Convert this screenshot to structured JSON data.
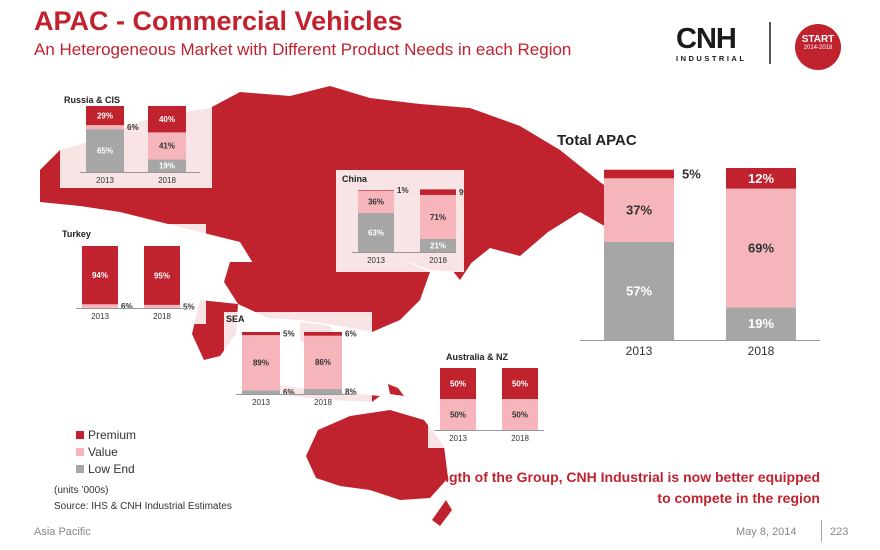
{
  "header": {
    "title": "APAC - Commercial Vehicles",
    "subtitle": "An Heterogeneous Market with Different Product Needs in each Region"
  },
  "logo": {
    "word": "CNH",
    "sub": "INDUSTRIAL"
  },
  "badge": {
    "line1": "START",
    "line2": "2014-2018"
  },
  "colors": {
    "premium": "#c0222e",
    "value": "#f5b5bb",
    "low_end": "#a6a6a6",
    "map": "#c0222e"
  },
  "chart_data": [
    {
      "type": "bar",
      "stacked": true,
      "title": "Russia & CIS",
      "categories": [
        "2013",
        "2018"
      ],
      "series": [
        {
          "name": "Low End",
          "values": [
            65,
            19
          ]
        },
        {
          "name": "Value",
          "values": [
            6,
            41
          ]
        },
        {
          "name": "Premium",
          "values": [
            29,
            40
          ]
        }
      ]
    },
    {
      "type": "bar",
      "stacked": true,
      "title": "China",
      "categories": [
        "2013",
        "2018"
      ],
      "series": [
        {
          "name": "Low End",
          "values": [
            63,
            21
          ]
        },
        {
          "name": "Value",
          "values": [
            36,
            71
          ]
        },
        {
          "name": "Premium",
          "values": [
            1,
            9
          ]
        }
      ]
    },
    {
      "type": "bar",
      "stacked": true,
      "title": "Turkey",
      "categories": [
        "2013",
        "2018"
      ],
      "series": [
        {
          "name": "Low End",
          "values": [
            0,
            0
          ]
        },
        {
          "name": "Value",
          "values": [
            6,
            5
          ]
        },
        {
          "name": "Premium",
          "values": [
            94,
            95
          ]
        }
      ]
    },
    {
      "type": "bar",
      "stacked": true,
      "title": "SEA",
      "categories": [
        "2013",
        "2018"
      ],
      "series": [
        {
          "name": "Low End",
          "values": [
            6,
            8
          ]
        },
        {
          "name": "Value",
          "values": [
            89,
            86
          ]
        },
        {
          "name": "Premium",
          "values": [
            5,
            6
          ]
        }
      ]
    },
    {
      "type": "bar",
      "stacked": true,
      "title": "Australia & NZ",
      "categories": [
        "2013",
        "2018"
      ],
      "series": [
        {
          "name": "Low End",
          "values": [
            0,
            0
          ]
        },
        {
          "name": "Value",
          "values": [
            50,
            50
          ]
        },
        {
          "name": "Premium",
          "values": [
            50,
            50
          ]
        }
      ]
    },
    {
      "type": "bar",
      "stacked": true,
      "title": "Total APAC",
      "categories": [
        "2013",
        "2018"
      ],
      "series": [
        {
          "name": "Low End",
          "values": [
            57,
            19
          ]
        },
        {
          "name": "Value",
          "values": [
            37,
            69
          ]
        },
        {
          "name": "Premium",
          "values": [
            5,
            12
          ]
        }
      ]
    }
  ],
  "legend": {
    "premium": "Premium",
    "value": "Value",
    "low_end": "Low End"
  },
  "notes": {
    "units": "(units ’000s)",
    "source": "Source: IHS & CNH Industrial Estimates"
  },
  "tagline": {
    "line1": "With the strength of the Group, CNH Industrial is now better equipped",
    "line2": "to compete in the region"
  },
  "footer": {
    "section": "Asia Pacific",
    "date": "May 8, 2014",
    "page": "223"
  }
}
